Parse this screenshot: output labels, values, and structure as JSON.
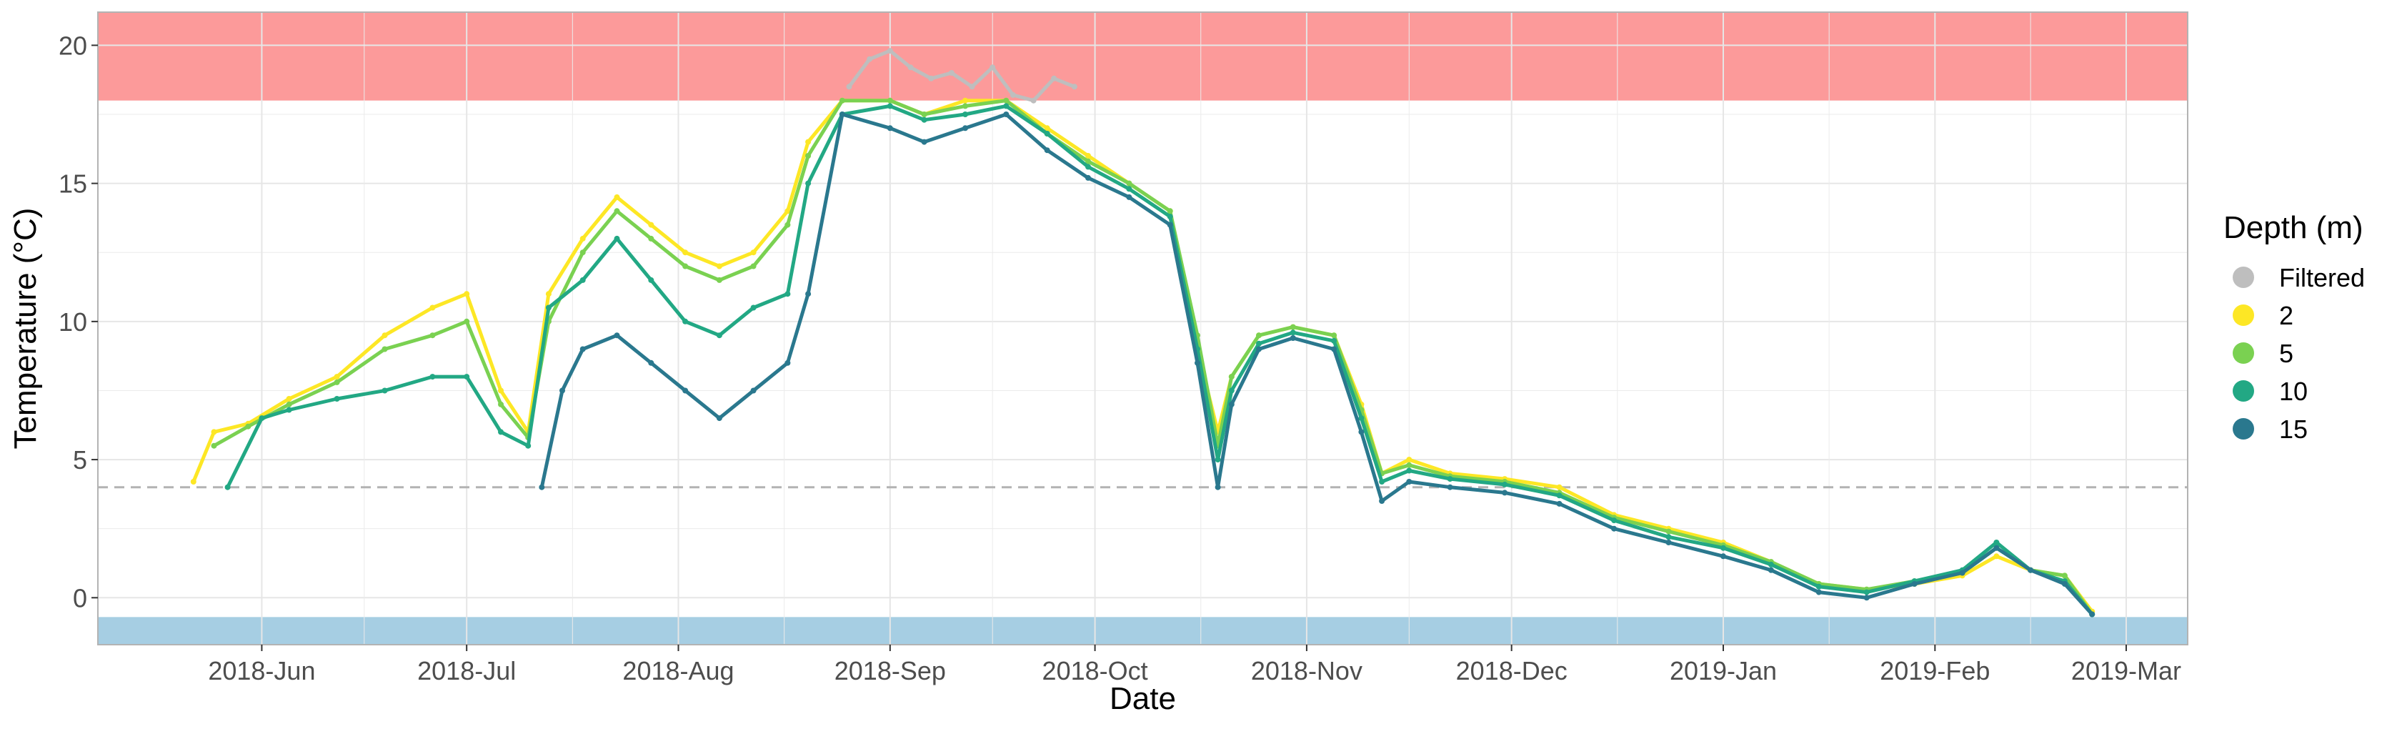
{
  "chart_data": {
    "type": "scatter",
    "title": "",
    "xlabel": "Date",
    "ylabel": "Temperature (°C)",
    "x_ticks": [
      "2018-Jun",
      "2018-Jul",
      "2018-Aug",
      "2018-Sep",
      "2018-Oct",
      "2018-Nov",
      "2018-Dec",
      "2019-Jan",
      "2019-Feb",
      "2019-Mar"
    ],
    "y_ticks": [
      "0",
      "5",
      "10",
      "15",
      "20"
    ],
    "xlim": [
      "2018-05-08",
      "2019-03-10"
    ],
    "ylim": [
      -1.7,
      21.2
    ],
    "grid": true,
    "legend": {
      "title": "Depth (m)",
      "position": "right",
      "entries": [
        {
          "label": "Filtered",
          "color": "#bebebe"
        },
        {
          "label": "2",
          "color": "#fde725"
        },
        {
          "label": "5",
          "color": "#7ad151"
        },
        {
          "label": "10",
          "color": "#22a884"
        },
        {
          "label": "15",
          "color": "#2a788e"
        }
      ]
    },
    "bands": [
      {
        "name": "upper",
        "ymin": 18,
        "ymax": 21.2,
        "color": "#fc9a9a"
      },
      {
        "name": "lower",
        "ymin": -1.7,
        "ymax": -0.7,
        "color": "#a6cee3"
      }
    ],
    "reference_line": {
      "y": 4,
      "color": "#b3b3b3",
      "style": "dashed"
    },
    "series": [
      {
        "name": "2",
        "color": "#fde725",
        "x": [
          "2018-05-22",
          "2018-05-25",
          "2018-05-30",
          "2018-06-05",
          "2018-06-12",
          "2018-06-19",
          "2018-06-26",
          "2018-07-01",
          "2018-07-06",
          "2018-07-10",
          "2018-07-13",
          "2018-07-18",
          "2018-07-23",
          "2018-07-28",
          "2018-08-02",
          "2018-08-07",
          "2018-08-12",
          "2018-08-17",
          "2018-08-20",
          "2018-08-25",
          "2018-09-01",
          "2018-09-06",
          "2018-09-12",
          "2018-09-18",
          "2018-09-24",
          "2018-09-30",
          "2018-10-06",
          "2018-10-12",
          "2018-10-16",
          "2018-10-19",
          "2018-10-21",
          "2018-10-25",
          "2018-10-30",
          "2018-11-05",
          "2018-11-09",
          "2018-11-12",
          "2018-11-16",
          "2018-11-22",
          "2018-11-30",
          "2018-12-08",
          "2018-12-16",
          "2018-12-24",
          "2019-01-01",
          "2019-01-08",
          "2019-01-15",
          "2019-01-22",
          "2019-01-29",
          "2019-02-05",
          "2019-02-10",
          "2019-02-15",
          "2019-02-20",
          "2019-02-24"
        ],
        "y": [
          4.2,
          6.0,
          6.3,
          7.2,
          8.0,
          9.5,
          10.5,
          11.0,
          7.5,
          6.0,
          11.0,
          13.0,
          14.5,
          13.5,
          12.5,
          12.0,
          12.5,
          14.0,
          16.5,
          18.0,
          18.0,
          17.5,
          18.0,
          18.0,
          17.0,
          16.0,
          15.0,
          14.0,
          9.0,
          6.0,
          8.0,
          9.5,
          9.8,
          9.5,
          7.0,
          4.5,
          5.0,
          4.5,
          4.3,
          4.0,
          3.0,
          2.5,
          2.0,
          1.3,
          0.5,
          0.3,
          0.5,
          0.8,
          1.5,
          1.0,
          0.8,
          -0.5
        ]
      },
      {
        "name": "5",
        "color": "#7ad151",
        "x": [
          "2018-05-25",
          "2018-05-30",
          "2018-06-05",
          "2018-06-12",
          "2018-06-19",
          "2018-06-26",
          "2018-07-01",
          "2018-07-06",
          "2018-07-10",
          "2018-07-13",
          "2018-07-18",
          "2018-07-23",
          "2018-07-28",
          "2018-08-02",
          "2018-08-07",
          "2018-08-12",
          "2018-08-17",
          "2018-08-20",
          "2018-08-25",
          "2018-09-01",
          "2018-09-06",
          "2018-09-12",
          "2018-09-18",
          "2018-09-24",
          "2018-09-30",
          "2018-10-06",
          "2018-10-12",
          "2018-10-16",
          "2018-10-19",
          "2018-10-21",
          "2018-10-25",
          "2018-10-30",
          "2018-11-05",
          "2018-11-09",
          "2018-11-12",
          "2018-11-16",
          "2018-11-22",
          "2018-11-30",
          "2018-12-08",
          "2018-12-16",
          "2018-12-24",
          "2019-01-01",
          "2019-01-08",
          "2019-01-15",
          "2019-01-22",
          "2019-01-29",
          "2019-02-05",
          "2019-02-10",
          "2019-02-15",
          "2019-02-20",
          "2019-02-24"
        ],
        "y": [
          5.5,
          6.2,
          7.0,
          7.8,
          9.0,
          9.5,
          10.0,
          7.0,
          5.8,
          10.0,
          12.5,
          14.0,
          13.0,
          12.0,
          11.5,
          12.0,
          13.5,
          16.0,
          18.0,
          18.0,
          17.5,
          17.8,
          18.0,
          16.8,
          15.8,
          15.0,
          14.0,
          9.5,
          5.5,
          8.0,
          9.5,
          9.8,
          9.5,
          6.8,
          4.5,
          4.8,
          4.4,
          4.2,
          3.8,
          2.9,
          2.4,
          1.9,
          1.3,
          0.5,
          0.3,
          0.6,
          0.9,
          1.8,
          1.0,
          0.8,
          -0.6
        ]
      },
      {
        "name": "10",
        "color": "#22a884",
        "x": [
          "2018-05-27",
          "2018-06-01",
          "2018-06-05",
          "2018-06-12",
          "2018-06-19",
          "2018-06-26",
          "2018-07-01",
          "2018-07-06",
          "2018-07-10",
          "2018-07-13",
          "2018-07-18",
          "2018-07-23",
          "2018-07-28",
          "2018-08-02",
          "2018-08-07",
          "2018-08-12",
          "2018-08-17",
          "2018-08-20",
          "2018-08-25",
          "2018-09-01",
          "2018-09-06",
          "2018-09-12",
          "2018-09-18",
          "2018-09-24",
          "2018-09-30",
          "2018-10-06",
          "2018-10-12",
          "2018-10-16",
          "2018-10-19",
          "2018-10-21",
          "2018-10-25",
          "2018-10-30",
          "2018-11-05",
          "2018-11-09",
          "2018-11-12",
          "2018-11-16",
          "2018-11-22",
          "2018-11-30",
          "2018-12-08",
          "2018-12-16",
          "2018-12-24",
          "2019-01-01",
          "2019-01-08",
          "2019-01-15",
          "2019-01-22",
          "2019-01-29",
          "2019-02-05",
          "2019-02-10",
          "2019-02-15",
          "2019-02-20",
          "2019-02-24"
        ],
        "y": [
          4.0,
          6.5,
          6.8,
          7.2,
          7.5,
          8.0,
          8.0,
          6.0,
          5.5,
          10.5,
          11.5,
          13.0,
          11.5,
          10.0,
          9.5,
          10.5,
          11.0,
          15.0,
          17.5,
          17.8,
          17.3,
          17.5,
          17.8,
          16.8,
          15.6,
          14.8,
          13.8,
          9.0,
          5.0,
          7.5,
          9.2,
          9.6,
          9.3,
          6.5,
          4.2,
          4.6,
          4.3,
          4.1,
          3.7,
          2.8,
          2.2,
          1.8,
          1.2,
          0.4,
          0.2,
          0.6,
          1.0,
          2.0,
          1.0,
          0.6,
          -0.6
        ]
      },
      {
        "name": "15",
        "color": "#2a788e",
        "x": [
          "2018-07-12",
          "2018-07-15",
          "2018-07-18",
          "2018-07-23",
          "2018-07-28",
          "2018-08-02",
          "2018-08-07",
          "2018-08-12",
          "2018-08-17",
          "2018-08-20",
          "2018-08-25",
          "2018-09-01",
          "2018-09-06",
          "2018-09-12",
          "2018-09-18",
          "2018-09-24",
          "2018-09-30",
          "2018-10-06",
          "2018-10-12",
          "2018-10-16",
          "2018-10-19",
          "2018-10-21",
          "2018-10-25",
          "2018-10-30",
          "2018-11-05",
          "2018-11-09",
          "2018-11-12",
          "2018-11-16",
          "2018-11-22",
          "2018-11-30",
          "2018-12-08",
          "2018-12-16",
          "2018-12-24",
          "2019-01-01",
          "2019-01-08",
          "2019-01-15",
          "2019-01-22",
          "2019-01-29",
          "2019-02-05",
          "2019-02-10",
          "2019-02-15",
          "2019-02-20",
          "2019-02-24"
        ],
        "y": [
          4.0,
          7.5,
          9.0,
          9.5,
          8.5,
          7.5,
          6.5,
          7.5,
          8.5,
          11.0,
          17.5,
          17.0,
          16.5,
          17.0,
          17.5,
          16.2,
          15.2,
          14.5,
          13.5,
          8.5,
          4.0,
          7.0,
          9.0,
          9.4,
          9.0,
          6.0,
          3.5,
          4.2,
          4.0,
          3.8,
          3.4,
          2.5,
          2.0,
          1.5,
          1.0,
          0.2,
          0.0,
          0.5,
          0.9,
          1.8,
          1.0,
          0.5,
          -0.6
        ]
      },
      {
        "name": "Filtered",
        "color": "#bebebe",
        "x": [
          "2018-08-26",
          "2018-08-29",
          "2018-09-01",
          "2018-09-04",
          "2018-09-07",
          "2018-09-10",
          "2018-09-13",
          "2018-09-16",
          "2018-09-19",
          "2018-09-22",
          "2018-09-25",
          "2018-09-28"
        ],
        "y": [
          18.5,
          19.5,
          19.8,
          19.2,
          18.8,
          19.0,
          18.5,
          19.2,
          18.2,
          18.0,
          18.8,
          18.5
        ]
      }
    ]
  }
}
